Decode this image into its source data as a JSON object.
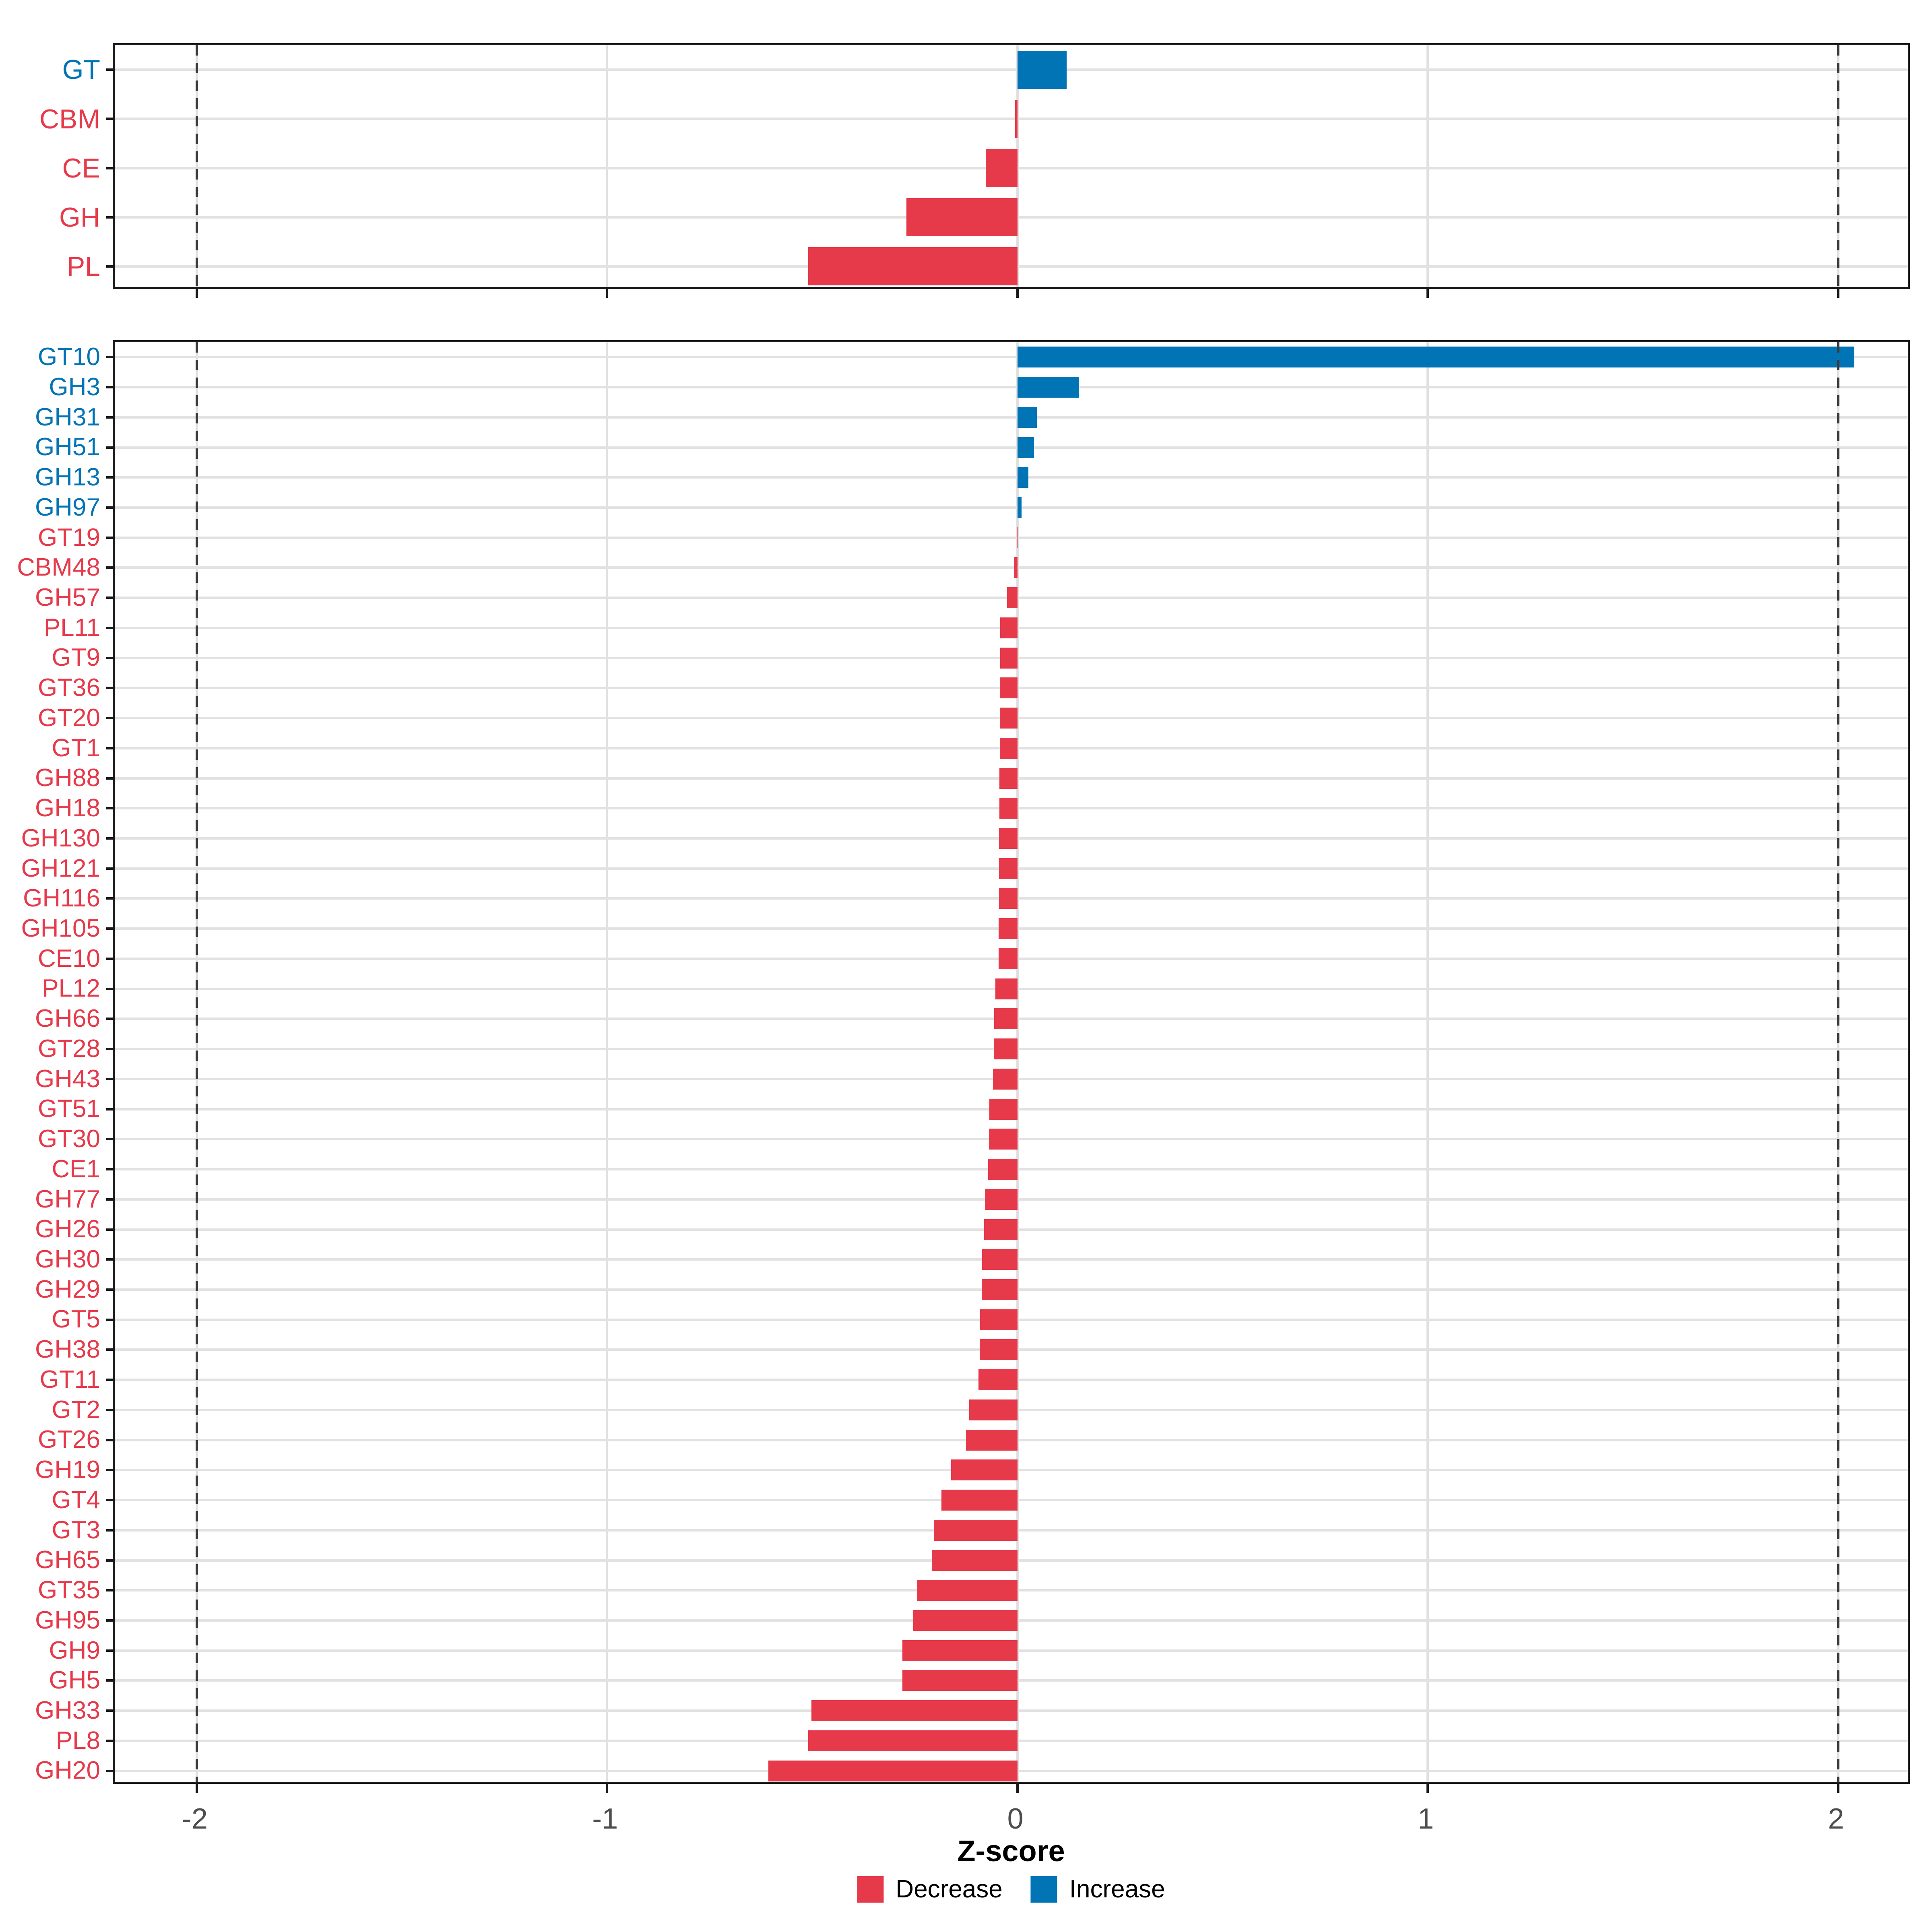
{
  "figure": {
    "background": "#FFFFFF"
  },
  "colors": {
    "decrease": "#E6394A",
    "increase": "#0074B5",
    "gridline": "#E2E2E2",
    "dashed_line": "#3C3C3C",
    "panel_border": "#1A1A1A",
    "tick_label": "#4D4D4D"
  },
  "axis": {
    "title": "Z-score",
    "ticks": [
      {
        "label": "-2",
        "value": -2
      },
      {
        "label": "-1",
        "value": -1
      },
      {
        "label": "0",
        "value": 0
      },
      {
        "label": "1",
        "value": 1
      },
      {
        "label": "2",
        "value": 2
      }
    ]
  },
  "legend": {
    "position": "bottom-center",
    "items": [
      {
        "label": "Decrease",
        "color": "#E6394A"
      },
      {
        "label": "Increase",
        "color": "#0074B5"
      }
    ]
  },
  "chart_data": [
    {
      "type": "bar",
      "panel": "cazyme-classes",
      "orientation": "horizontal",
      "xlabel": "Z-score",
      "xlim": [
        -2.2,
        2.18
      ],
      "grid": "major-only",
      "dashed_vlines": [
        -2,
        2
      ],
      "legend_position": "bottom",
      "categories": [
        "GT",
        "CBM",
        "CE",
        "GH",
        "PL"
      ],
      "values": [
        0.12,
        -0.006,
        -0.077,
        -0.27,
        -0.51
      ],
      "directions": [
        "increase",
        "decrease",
        "decrease",
        "decrease",
        "decrease"
      ]
    },
    {
      "type": "bar",
      "panel": "cazyme-families",
      "orientation": "horizontal",
      "xlabel": "Z-score",
      "xlim": [
        -2.2,
        2.18
      ],
      "grid": "major-only",
      "dashed_vlines": [
        -2,
        2
      ],
      "legend_position": "bottom",
      "categories": [
        "GT10",
        "GH3",
        "GH31",
        "GH51",
        "GH13",
        "GH97",
        "GT19",
        "CBM48",
        "GH57",
        "PL11",
        "GT9",
        "GT36",
        "GT20",
        "GT1",
        "GH88",
        "GH18",
        "GH130",
        "GH121",
        "GH116",
        "GH105",
        "CE10",
        "PL12",
        "GH66",
        "GT28",
        "GH43",
        "GT51",
        "GT30",
        "CE1",
        "GH77",
        "GH26",
        "GH30",
        "GH29",
        "GT5",
        "GH38",
        "GT11",
        "GT2",
        "GT26",
        "GH19",
        "GT4",
        "GT3",
        "GH65",
        "GT35",
        "GH95",
        "GH9",
        "GH5",
        "GH33",
        "PL8",
        "GH20"
      ],
      "values": [
        2.04,
        0.15,
        0.047,
        0.041,
        0.027,
        0.01,
        -0.001,
        -0.008,
        -0.025,
        -0.042,
        -0.042,
        -0.043,
        -0.043,
        -0.043,
        -0.044,
        -0.044,
        -0.045,
        -0.045,
        -0.045,
        -0.046,
        -0.046,
        -0.054,
        -0.057,
        -0.058,
        -0.06,
        -0.068,
        -0.069,
        -0.071,
        -0.079,
        -0.081,
        -0.086,
        -0.087,
        -0.091,
        -0.092,
        -0.095,
        -0.117,
        -0.125,
        -0.162,
        -0.185,
        -0.204,
        -0.209,
        -0.245,
        -0.254,
        -0.28,
        -0.28,
        -0.502,
        -0.51,
        -0.607
      ],
      "directions": [
        "increase",
        "increase",
        "increase",
        "increase",
        "increase",
        "increase",
        "decrease",
        "decrease",
        "decrease",
        "decrease",
        "decrease",
        "decrease",
        "decrease",
        "decrease",
        "decrease",
        "decrease",
        "decrease",
        "decrease",
        "decrease",
        "decrease",
        "decrease",
        "decrease",
        "decrease",
        "decrease",
        "decrease",
        "decrease",
        "decrease",
        "decrease",
        "decrease",
        "decrease",
        "decrease",
        "decrease",
        "decrease",
        "decrease",
        "decrease",
        "decrease",
        "decrease",
        "decrease",
        "decrease",
        "decrease",
        "decrease",
        "decrease",
        "decrease",
        "decrease",
        "decrease",
        "decrease",
        "decrease",
        "decrease"
      ]
    }
  ]
}
